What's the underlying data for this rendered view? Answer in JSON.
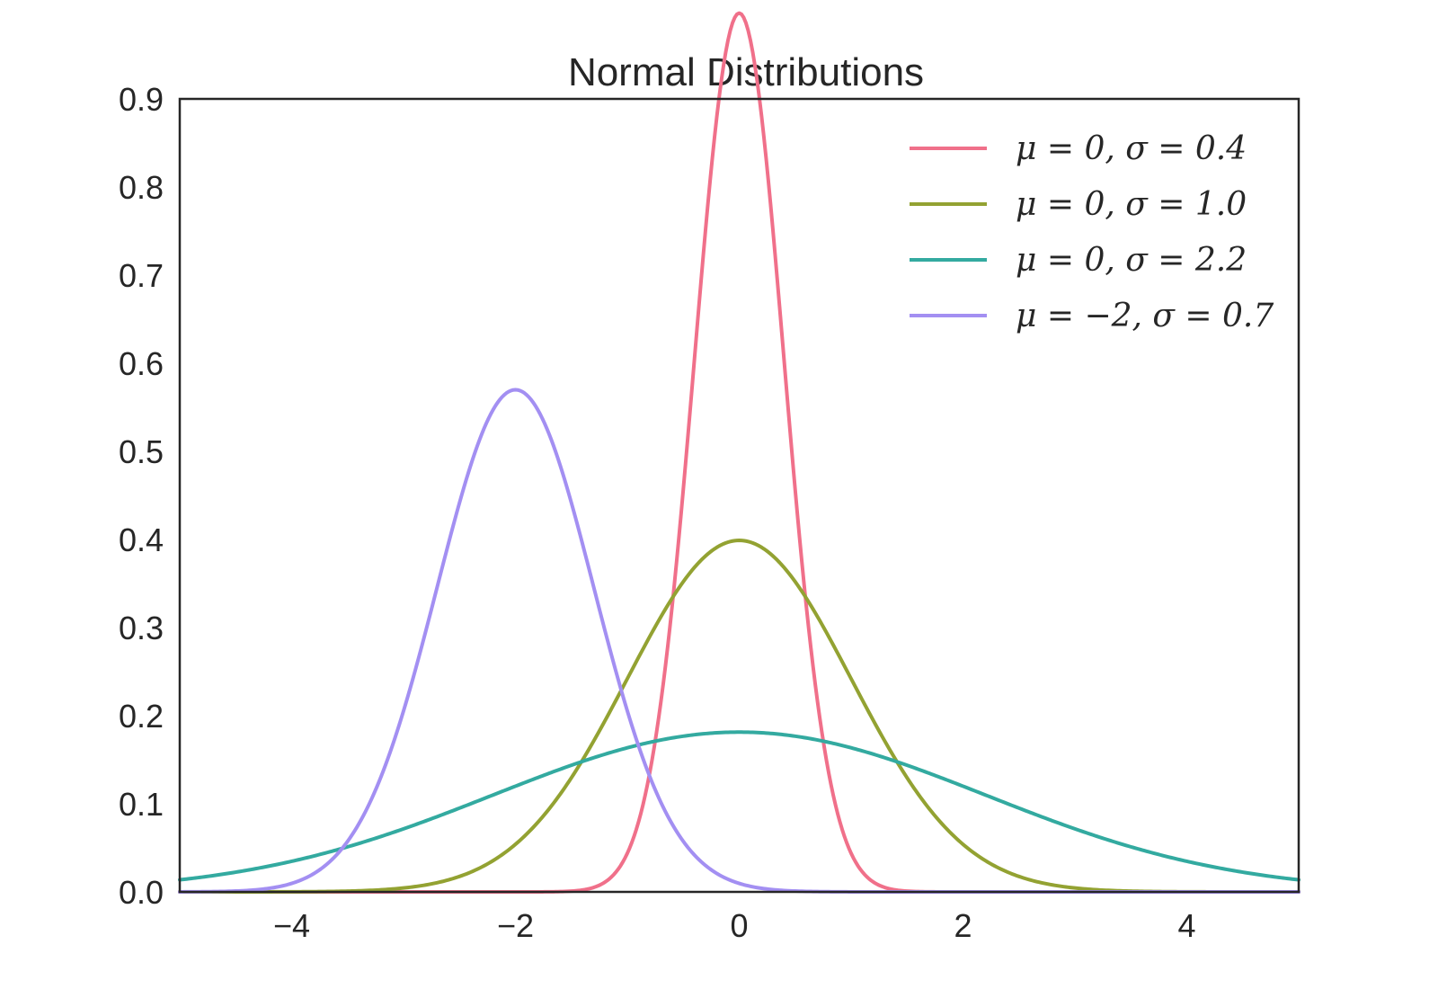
{
  "chart_data": {
    "type": "line",
    "title": "Normal Distributions",
    "xlabel": "",
    "ylabel": "",
    "xlim": [
      -5,
      5
    ],
    "ylim": [
      0,
      0.9
    ],
    "grid": false,
    "legend_placement": "top-right",
    "x_ticks": [
      -4,
      -2,
      0,
      2,
      4
    ],
    "x_tick_labels": [
      "−4",
      "−2",
      "0",
      "2",
      "4"
    ],
    "y_ticks": [
      0,
      0.1,
      0.2,
      0.3,
      0.4,
      0.5,
      0.6,
      0.7,
      0.8,
      0.9
    ],
    "y_tick_labels": [
      "0.0",
      "0.1",
      "0.2",
      "0.3",
      "0.4",
      "0.5",
      "0.6",
      "0.7",
      "0.8",
      "0.9"
    ],
    "series": [
      {
        "name": "μ = 0,   σ = 0.4",
        "mu": 0,
        "sigma": 0.4,
        "color": "#f0708a"
      },
      {
        "name": "μ = 0,   σ = 1.0",
        "mu": 0,
        "sigma": 1.0,
        "color": "#93a232"
      },
      {
        "name": "μ = 0,   σ = 2.2",
        "mu": 0,
        "sigma": 2.2,
        "color": "#33aaa0"
      },
      {
        "name": "μ = −2,   σ = 0.7",
        "mu": -2,
        "sigma": 0.7,
        "color": "#a38ff2"
      }
    ]
  }
}
